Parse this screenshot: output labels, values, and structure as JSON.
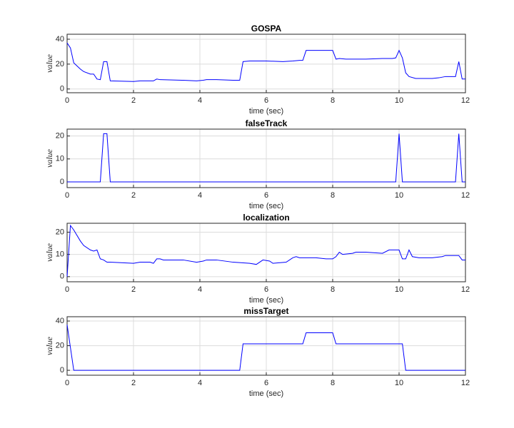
{
  "chart_data": [
    {
      "type": "line",
      "title": "GOSPA",
      "xlabel": "time (sec)",
      "ylabel": "value",
      "x": [
        0,
        0.1,
        0.2,
        0.4,
        0.5,
        0.7,
        0.8,
        0.9,
        1.0,
        1.1,
        1.2,
        1.3,
        2.0,
        2.2,
        2.5,
        2.6,
        2.7,
        2.8,
        3.5,
        3.9,
        4.1,
        4.2,
        4.5,
        5.0,
        5.2,
        5.3,
        5.5,
        6.0,
        6.5,
        6.8,
        7.0,
        7.1,
        7.2,
        8.0,
        8.1,
        8.2,
        8.4,
        9.0,
        9.5,
        9.8,
        9.9,
        10.0,
        10.1,
        10.2,
        10.3,
        10.5,
        11.0,
        11.2,
        11.4,
        11.7,
        11.8,
        11.9,
        12
      ],
      "series": [
        {
          "color": "#0000ff",
          "values": [
            37,
            33,
            21,
            16,
            14,
            12,
            12,
            8,
            7.5,
            22,
            22,
            6.5,
            6,
            6.5,
            6.5,
            6.5,
            8,
            7.5,
            7,
            6.5,
            7,
            7.5,
            7.5,
            7,
            7,
            22,
            22.5,
            22.5,
            22,
            22.5,
            23,
            23,
            31,
            31,
            24,
            24.5,
            24,
            24,
            24.5,
            24.5,
            25,
            31,
            25,
            13,
            10,
            8.5,
            8.5,
            9,
            10,
            10,
            22,
            8,
            8
          ]
        }
      ],
      "xlim": [
        0,
        12
      ],
      "xticks": [
        0,
        2,
        4,
        6,
        8,
        10,
        12
      ],
      "ylim": [
        -3,
        44
      ],
      "yticks": [
        0,
        20,
        40
      ],
      "grid": true
    },
    {
      "type": "line",
      "title": "falseTrack",
      "xlabel": "time (sec)",
      "ylabel": "value",
      "x": [
        0,
        1.0,
        1.1,
        1.2,
        1.3,
        9.9,
        10.0,
        10.1,
        11.7,
        11.8,
        11.9,
        12
      ],
      "series": [
        {
          "color": "#0000ff",
          "values": [
            0,
            0,
            21,
            21,
            0,
            0,
            21,
            0,
            0,
            21,
            0,
            0
          ]
        }
      ],
      "xlim": [
        0,
        12
      ],
      "xticks": [
        0,
        2,
        4,
        6,
        8,
        10,
        12
      ],
      "ylim": [
        -2.5,
        23
      ],
      "yticks": [
        0,
        10,
        20
      ],
      "grid": true
    },
    {
      "type": "line",
      "title": "localization",
      "xlabel": "time (sec)",
      "ylabel": "value",
      "x": [
        0,
        0.1,
        0.2,
        0.4,
        0.5,
        0.7,
        0.8,
        0.9,
        1.0,
        1.1,
        1.2,
        1.3,
        2.0,
        2.2,
        2.5,
        2.6,
        2.7,
        2.8,
        2.9,
        3.5,
        3.9,
        4.1,
        4.2,
        4.5,
        5.0,
        5.5,
        5.7,
        5.9,
        6.1,
        6.2,
        6.6,
        6.8,
        6.9,
        7.0,
        7.5,
        7.8,
        8.0,
        8.1,
        8.2,
        8.3,
        8.6,
        8.7,
        9.0,
        9.5,
        9.7,
        10.0,
        10.1,
        10.2,
        10.3,
        10.4,
        10.6,
        11.0,
        11.3,
        11.4,
        11.8,
        11.9,
        12
      ],
      "series": [
        {
          "color": "#0000ff",
          "values": [
            0,
            23,
            21,
            16,
            14,
            12,
            11.5,
            12,
            8,
            7.5,
            6.5,
            6.5,
            6,
            6.5,
            6.5,
            6,
            8,
            8,
            7.5,
            7.5,
            6.5,
            7,
            7.5,
            7.5,
            6.5,
            6,
            5.5,
            7.5,
            7,
            6,
            6.5,
            8.5,
            9,
            8.5,
            8.5,
            8,
            8,
            9,
            11,
            10,
            10.5,
            11,
            11,
            10.5,
            12,
            12,
            8,
            8,
            12,
            9,
            8.5,
            8.5,
            9,
            9.5,
            9.5,
            7.5,
            7.5
          ]
        }
      ],
      "xlim": [
        0,
        12
      ],
      "xticks": [
        0,
        2,
        4,
        6,
        8,
        10,
        12
      ],
      "ylim": [
        -2.3,
        24
      ],
      "yticks": [
        0,
        10,
        20
      ],
      "grid": true
    },
    {
      "type": "line",
      "title": "missTarget",
      "xlabel": "time (sec)",
      "ylabel": "value",
      "x": [
        0,
        0.2,
        5.2,
        5.3,
        7.1,
        7.2,
        8.0,
        8.1,
        10.1,
        10.2,
        12
      ],
      "series": [
        {
          "color": "#0000ff",
          "values": [
            37,
            0,
            0,
            21.5,
            21.5,
            30.5,
            30.5,
            21.5,
            21.5,
            0,
            0
          ]
        }
      ],
      "xlim": [
        0,
        12
      ],
      "xticks": [
        0,
        2,
        4,
        6,
        8,
        10,
        12
      ],
      "ylim": [
        -4,
        43.5
      ],
      "yticks": [
        0,
        20,
        40
      ],
      "grid": true
    }
  ]
}
